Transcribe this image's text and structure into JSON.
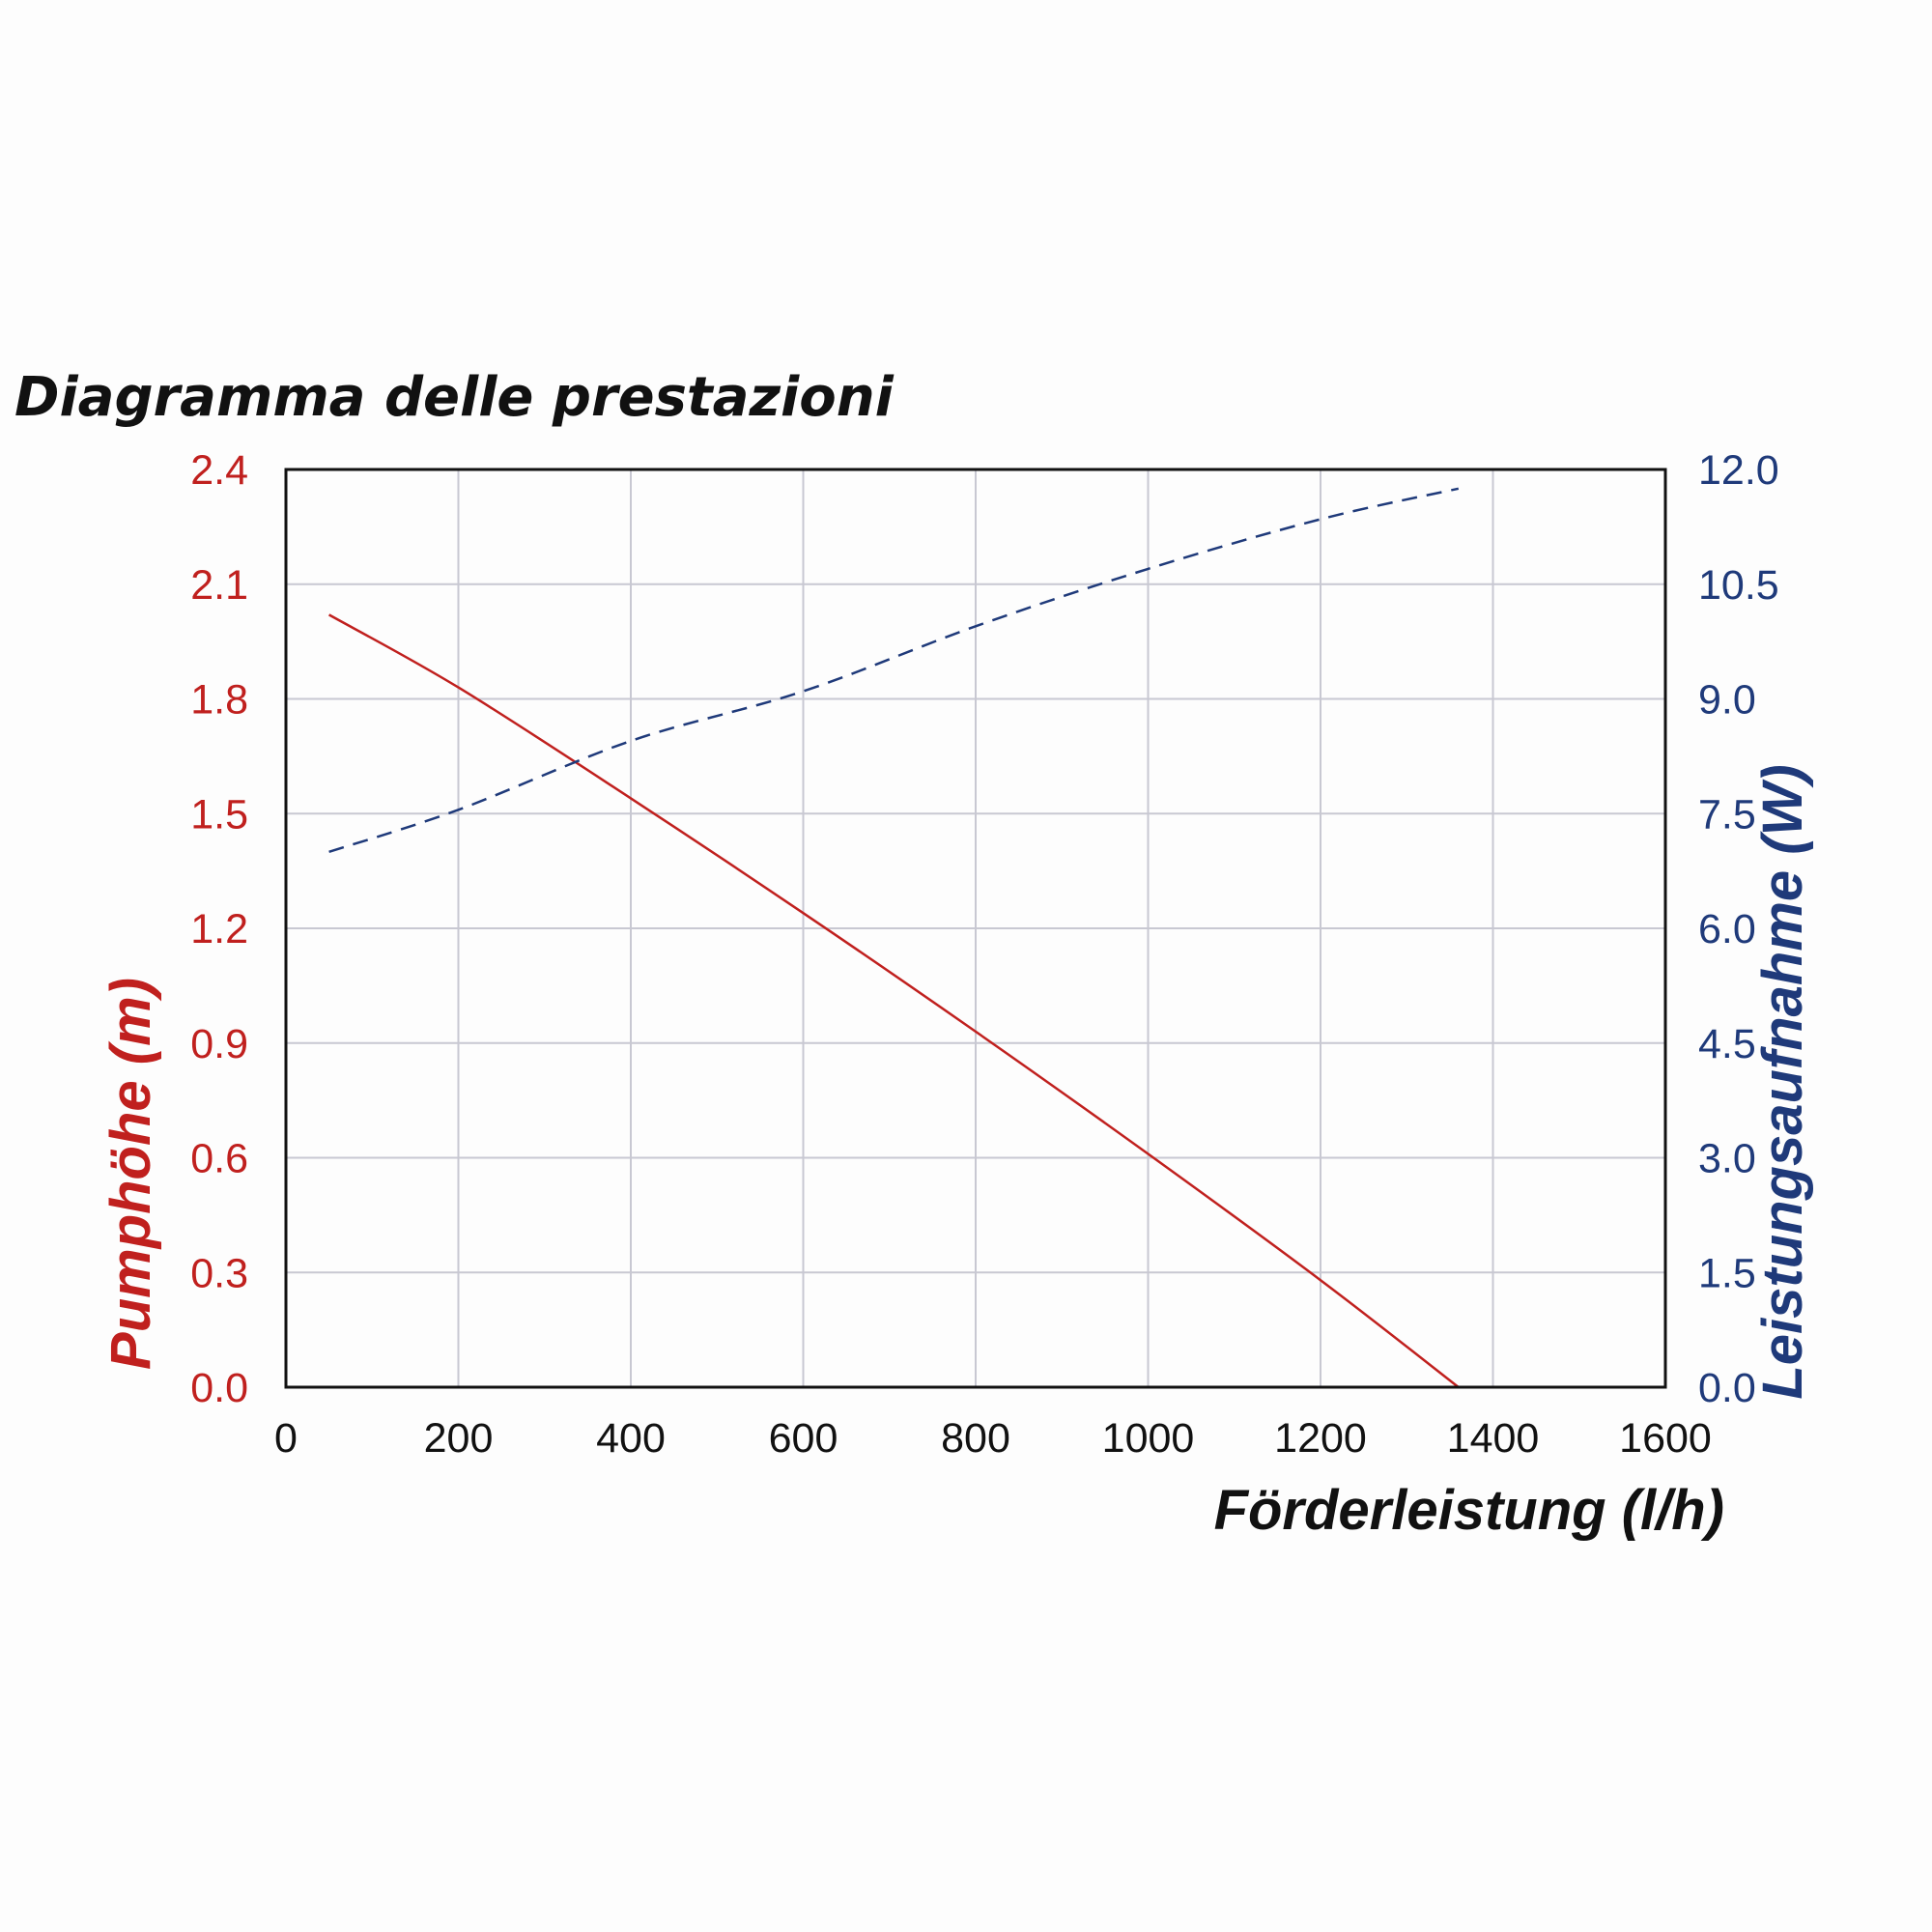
{
  "chart_data": {
    "type": "line",
    "title": "Diagramma delle prestazioni",
    "xlabel": "Förderleistung (l/h)",
    "ylabel_left": "Pumphöhe (m)",
    "ylabel_right": "Leistungsaufnahme (W)",
    "xlim": [
      0,
      1600
    ],
    "ylim_left": [
      0,
      2.4
    ],
    "ylim_right": [
      0,
      12.0
    ],
    "x_ticks": [
      "0",
      "200",
      "400",
      "600",
      "800",
      "1000",
      "1200",
      "1400",
      "1600"
    ],
    "y_left_ticks": [
      "0.0",
      "0.3",
      "0.6",
      "0.9",
      "1.2",
      "1.5",
      "1.8",
      "2.1",
      "2.4"
    ],
    "y_right_ticks": [
      "0.0",
      "1.5",
      "3.0",
      "4.5",
      "6.0",
      "7.5",
      "9.0",
      "10.5",
      "12.0"
    ],
    "grid": true,
    "series": [
      {
        "axis": "left",
        "style": "solid",
        "color": "#c0201e",
        "x": [
          50,
          200,
          400,
          600,
          800,
          1000,
          1200,
          1360
        ],
        "y": [
          2.02,
          1.83,
          1.54,
          1.24,
          0.93,
          0.61,
          0.28,
          0.0
        ]
      },
      {
        "axis": "right",
        "style": "dashed",
        "color": "#1f3a7a",
        "x": [
          50,
          200,
          400,
          600,
          800,
          1000,
          1200,
          1360
        ],
        "y": [
          7.0,
          7.55,
          8.45,
          9.1,
          9.95,
          10.7,
          11.35,
          11.75
        ]
      }
    ]
  },
  "colors": {
    "left_axis": "#c0201e",
    "right_axis": "#1f3a7a",
    "grid": "#c8c8d2",
    "frame": "#111111",
    "text": "#111111"
  }
}
